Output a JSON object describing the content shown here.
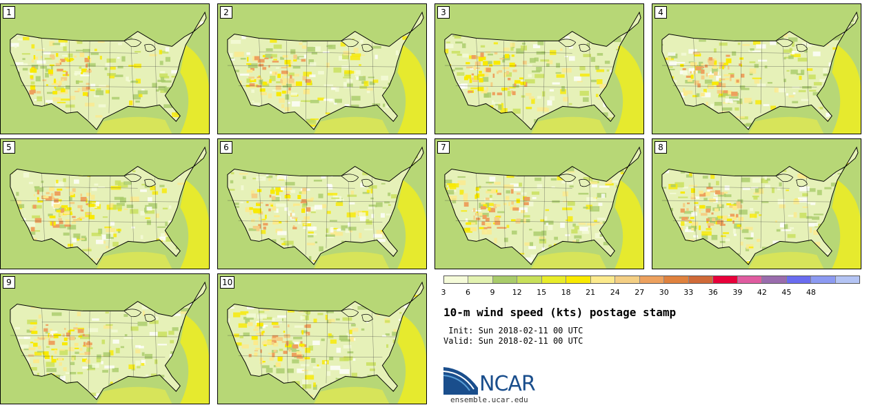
{
  "stamps": [
    {
      "label": "1"
    },
    {
      "label": "2"
    },
    {
      "label": "3"
    },
    {
      "label": "4"
    },
    {
      "label": "5"
    },
    {
      "label": "6"
    },
    {
      "label": "7"
    },
    {
      "label": "8"
    },
    {
      "label": "9"
    },
    {
      "label": "10"
    }
  ],
  "colorbar": {
    "tick_labels": [
      "3",
      "6",
      "9",
      "12",
      "15",
      "18",
      "21",
      "24",
      "27",
      "30",
      "33",
      "36",
      "39",
      "42",
      "45",
      "48"
    ],
    "colors": [
      "#f5fbd9",
      "#e2f2b0",
      "#a9cc6a",
      "#c8e05a",
      "#e8ec2a",
      "#f9ea00",
      "#fcea8c",
      "#f4cf84",
      "#eda15e",
      "#e0823e",
      "#d06a38",
      "#e8003a",
      "#e05ca0",
      "#9a6cad",
      "#6a6cf0",
      "#8c9af2",
      "#b4c4f4"
    ]
  },
  "title": "10-m wind speed (kts) postage stamp",
  "init": " Init: Sun 2018-02-11 00 UTC",
  "valid": "Valid: Sun 2018-02-11 00 UTC",
  "logo": {
    "text": "NCAR",
    "color": "#1a4e8c"
  },
  "website": "ensemble.ucar.edu"
}
